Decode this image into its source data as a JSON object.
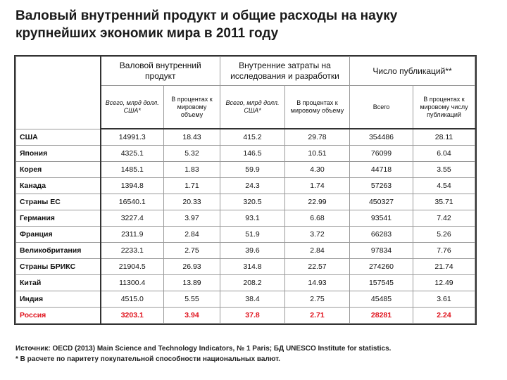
{
  "title": "Валовый внутренний продукт и общие расходы на науку крупнейших экономик мира в 2011 году",
  "table": {
    "groups": [
      "Валовой внутренний продукт",
      "Внутренние затраты на исследования и разработки",
      "Число публикаций**"
    ],
    "subheaders": [
      "Всего, млрд долл. США*",
      "В процентах к мировому объему",
      "Всего, млрд долл. США*",
      "В процентах к мировому объему",
      "Всего",
      "В процентах к мировому числу публикаций"
    ],
    "rows": [
      {
        "country": "США",
        "values": [
          "14991.3",
          "18.43",
          "415.2",
          "29.78",
          "354486",
          "28.11"
        ]
      },
      {
        "country": "Япония",
        "values": [
          "4325.1",
          "5.32",
          "146.5",
          "10.51",
          "76099",
          "6.04"
        ]
      },
      {
        "country": "Корея",
        "values": [
          "1485.1",
          "1.83",
          "59.9",
          "4.30",
          "44718",
          "3.55"
        ]
      },
      {
        "country": "Канада",
        "values": [
          "1394.8",
          "1.71",
          "24.3",
          "1.74",
          "57263",
          "4.54"
        ]
      },
      {
        "country": "Страны ЕС",
        "values": [
          "16540.1",
          "20.33",
          "320.5",
          "22.99",
          "450327",
          "35.71"
        ]
      },
      {
        "country": "Германия",
        "values": [
          "3227.4",
          "3.97",
          "93.1",
          "6.68",
          "93541",
          "7.42"
        ]
      },
      {
        "country": "Франция",
        "values": [
          "2311.9",
          "2.84",
          "51.9",
          "3.72",
          "66283",
          "5.26"
        ]
      },
      {
        "country": "Великобритания",
        "values": [
          "2233.1",
          "2.75",
          "39.6",
          "2.84",
          "97834",
          "7.76"
        ]
      },
      {
        "country": "Страны БРИКС",
        "values": [
          "21904.5",
          "26.93",
          "314.8",
          "22.57",
          "274260",
          "21.74"
        ]
      },
      {
        "country": "Китай",
        "values": [
          "11300.4",
          "13.89",
          "208.2",
          "14.93",
          "157545",
          "12.49"
        ]
      },
      {
        "country": "Индия",
        "values": [
          "4515.0",
          "5.55",
          "38.4",
          "2.75",
          "45485",
          "3.61"
        ]
      },
      {
        "country": "Россия",
        "values": [
          "3203.1",
          "3.94",
          "37.8",
          "2.71",
          "28281",
          "2.24"
        ],
        "highlight": true
      }
    ]
  },
  "footnotes": {
    "source": "Источник: OECD (2013) Main Science and Technology Indicators, № 1 Paris; БД UNESCO Institute for statistics.",
    "note": "* В расчете по паритету покупательной способности национальных валют."
  }
}
